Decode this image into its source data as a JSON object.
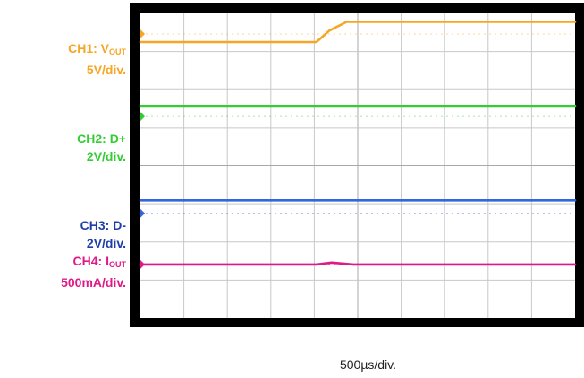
{
  "chart_data": {
    "type": "line",
    "title": "",
    "xlabel": "500µs/div.",
    "grid": true,
    "x_divisions": 10,
    "y_divisions": 8,
    "series": [
      {
        "name": "CH1: V",
        "name_sub": "OUT",
        "scale": "5V/div.",
        "color": "#f5a623",
        "x_div": [
          0,
          4.05,
          4.35,
          4.75,
          10
        ],
        "y_div": [
          7.25,
          7.25,
          7.55,
          7.78,
          7.78
        ]
      },
      {
        "name": "CH2: D+",
        "name_sub": "",
        "scale": "2V/div.",
        "color": "#33cc33",
        "x_div": [
          0,
          10
        ],
        "y_div": [
          5.56,
          5.56
        ]
      },
      {
        "name": "CH3: D-",
        "name_sub": "",
        "scale": "2V/div.",
        "color": "#3366dd",
        "x_div": [
          0,
          10
        ],
        "y_div": [
          3.09,
          3.09
        ]
      },
      {
        "name": "CH4: I",
        "name_sub": "OUT",
        "scale": "500mA/div.",
        "color": "#e0198a",
        "x_div": [
          0,
          4.05,
          4.4,
          4.9,
          10
        ],
        "y_div": [
          1.41,
          1.41,
          1.46,
          1.41,
          1.41
        ]
      }
    ],
    "ground_markers": [
      {
        "channel": "CH1",
        "y_div": 7.46,
        "color": "#f5a623"
      },
      {
        "channel": "CH2",
        "y_div": 5.3,
        "color": "#33cc33"
      },
      {
        "channel": "CH3",
        "y_div": 2.75,
        "color": "#3366dd"
      },
      {
        "channel": "CH4",
        "y_div": 1.41,
        "color": "#e0198a"
      }
    ]
  }
}
